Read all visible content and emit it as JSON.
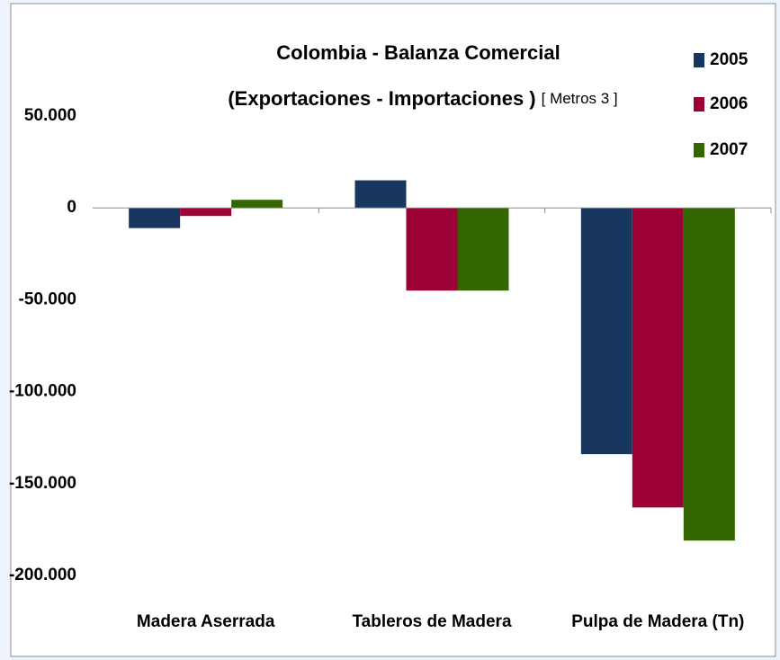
{
  "chart_data": {
    "type": "bar",
    "title": "Colombia - Balanza Comercial",
    "subtitle": "(Exportaciones - Importaciones )",
    "unit_label": "[ Metros 3 ]",
    "categories": [
      "Madera Aserrada",
      "Tableros de Madera",
      "Pulpa de Madera (Tn)"
    ],
    "series": [
      {
        "name": "2005",
        "color": "#17375e",
        "values": [
          -11000,
          15000,
          -134000
        ]
      },
      {
        "name": "2006",
        "color": "#9b0036",
        "values": [
          -4400,
          -45000,
          -163000
        ]
      },
      {
        "name": "2007",
        "color": "#336600",
        "values": [
          4400,
          -45000,
          -181000
        ]
      }
    ],
    "ylim": [
      -200000,
      50000
    ],
    "yticks": [
      {
        "value": 50000,
        "label": "50.000"
      },
      0,
      {
        "value": -50000,
        "label": "-50.000"
      },
      {
        "value": -100000,
        "label": "-100.000"
      },
      {
        "value": -150000,
        "label": "-150.000"
      },
      {
        "value": -200000,
        "label": "-200.000"
      }
    ],
    "legend": "top-right"
  }
}
